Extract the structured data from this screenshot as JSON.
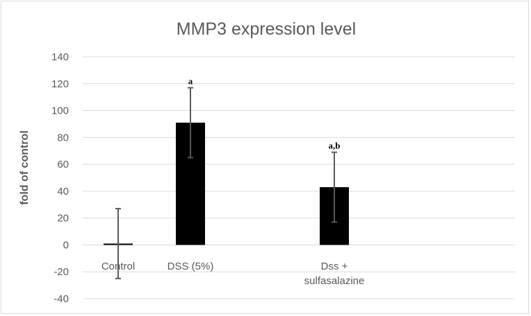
{
  "chart_data": {
    "type": "bar",
    "title": "MMP3 expression level",
    "ylabel": "fold of control",
    "xlabel": "",
    "ylim": [
      -40,
      140
    ],
    "yticks": [
      -40,
      -20,
      0,
      20,
      40,
      60,
      80,
      100,
      120,
      140
    ],
    "grid": true,
    "categories": [
      {
        "lines": [
          "Control"
        ]
      },
      {
        "lines": [
          "DSS (5%)"
        ]
      },
      {
        "lines": [
          "Dss +",
          "sulfasalazine"
        ]
      }
    ],
    "values": [
      1,
      91,
      43
    ],
    "error": [
      26,
      26,
      26
    ],
    "annotations": [
      "",
      "a",
      "a,b"
    ],
    "bar_color": "#000000",
    "error_color": "#595959",
    "grid_color": "#d9d9d9"
  }
}
